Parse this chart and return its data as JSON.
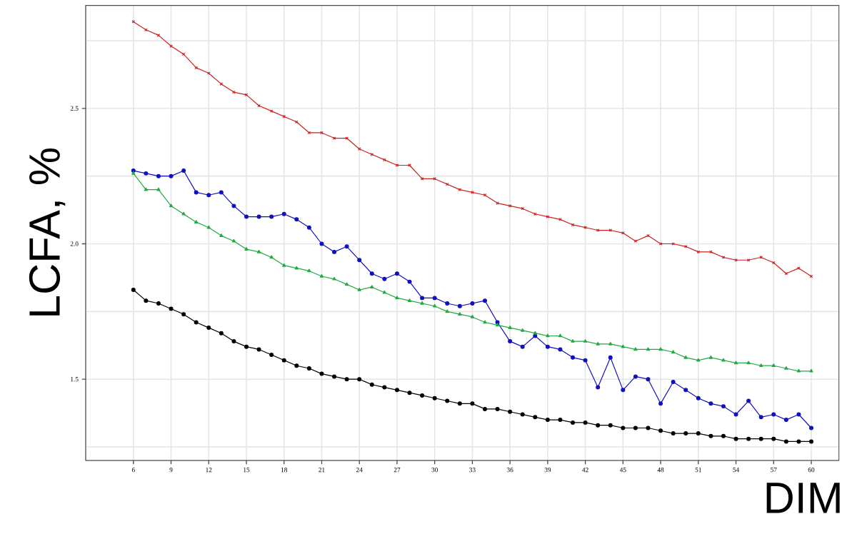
{
  "chart_data": {
    "type": "line",
    "xlabel": "DIM",
    "ylabel": "LCFA, %",
    "x": [
      6,
      7,
      8,
      9,
      10,
      11,
      12,
      13,
      14,
      15,
      16,
      17,
      18,
      19,
      20,
      21,
      22,
      23,
      24,
      25,
      26,
      27,
      28,
      29,
      30,
      31,
      32,
      33,
      34,
      35,
      36,
      37,
      38,
      39,
      40,
      41,
      42,
      43,
      44,
      45,
      46,
      47,
      48,
      49,
      50,
      51,
      52,
      53,
      54,
      55,
      56,
      57,
      58,
      59,
      60
    ],
    "series": [
      {
        "color": "#cc2222",
        "marker": "cross",
        "values": [
          2.82,
          2.79,
          2.77,
          2.73,
          2.7,
          2.65,
          2.63,
          2.59,
          2.56,
          2.55,
          2.51,
          2.49,
          2.47,
          2.45,
          2.41,
          2.41,
          2.39,
          2.39,
          2.35,
          2.33,
          2.31,
          2.29,
          2.29,
          2.24,
          2.24,
          2.22,
          2.2,
          2.19,
          2.18,
          2.15,
          2.14,
          2.13,
          2.11,
          2.1,
          2.09,
          2.07,
          2.06,
          2.05,
          2.05,
          2.04,
          2.01,
          2.03,
          2.0,
          2.0,
          1.99,
          1.97,
          1.97,
          1.95,
          1.94,
          1.94,
          1.95,
          1.93,
          1.89,
          1.91,
          1.88
        ]
      },
      {
        "color": "#1010c0",
        "marker": "circle",
        "values": [
          2.27,
          2.26,
          2.25,
          2.25,
          2.27,
          2.19,
          2.18,
          2.19,
          2.14,
          2.1,
          2.1,
          2.1,
          2.11,
          2.09,
          2.06,
          2.0,
          1.97,
          1.99,
          1.94,
          1.89,
          1.87,
          1.89,
          1.86,
          1.8,
          1.8,
          1.78,
          1.77,
          1.78,
          1.79,
          1.71,
          1.64,
          1.62,
          1.66,
          1.62,
          1.61,
          1.58,
          1.57,
          1.47,
          1.58,
          1.46,
          1.51,
          1.5,
          1.41,
          1.49,
          1.46,
          1.43,
          1.41,
          1.4,
          1.37,
          1.42,
          1.36,
          1.37,
          1.35,
          1.37,
          1.32
        ]
      },
      {
        "color": "#22aa44",
        "marker": "triangle",
        "values": [
          2.26,
          2.2,
          2.2,
          2.14,
          2.11,
          2.08,
          2.06,
          2.03,
          2.01,
          1.98,
          1.97,
          1.95,
          1.92,
          1.91,
          1.9,
          1.88,
          1.87,
          1.85,
          1.83,
          1.84,
          1.82,
          1.8,
          1.79,
          1.78,
          1.77,
          1.75,
          1.74,
          1.73,
          1.71,
          1.7,
          1.69,
          1.68,
          1.67,
          1.66,
          1.66,
          1.64,
          1.64,
          1.63,
          1.63,
          1.62,
          1.61,
          1.61,
          1.61,
          1.6,
          1.58,
          1.57,
          1.58,
          1.57,
          1.56,
          1.56,
          1.55,
          1.55,
          1.54,
          1.53,
          1.53
        ]
      },
      {
        "color": "#000000",
        "marker": "circle",
        "values": [
          1.83,
          1.79,
          1.78,
          1.76,
          1.74,
          1.71,
          1.69,
          1.67,
          1.64,
          1.62,
          1.61,
          1.59,
          1.57,
          1.55,
          1.54,
          1.52,
          1.51,
          1.5,
          1.5,
          1.48,
          1.47,
          1.46,
          1.45,
          1.44,
          1.43,
          1.42,
          1.41,
          1.41,
          1.39,
          1.39,
          1.38,
          1.37,
          1.36,
          1.35,
          1.35,
          1.34,
          1.34,
          1.33,
          1.33,
          1.32,
          1.32,
          1.32,
          1.31,
          1.3,
          1.3,
          1.3,
          1.29,
          1.29,
          1.28,
          1.28,
          1.28,
          1.28,
          1.27,
          1.27,
          1.27
        ]
      }
    ],
    "xlim": [
      2.2,
      62.2
    ],
    "ylim": [
      1.2,
      2.88
    ],
    "xticks": [
      6,
      9,
      12,
      15,
      18,
      21,
      24,
      27,
      30,
      33,
      36,
      39,
      42,
      45,
      48,
      51,
      54,
      57,
      60
    ],
    "yticks": [
      {
        "value": 1.25,
        "label": null
      },
      {
        "value": 1.5,
        "label": "1.5"
      },
      {
        "value": 1.75,
        "label": null
      },
      {
        "value": 2.0,
        "label": "2.0"
      },
      {
        "value": 2.25,
        "label": null
      },
      {
        "value": 2.5,
        "label": "2.5"
      },
      {
        "value": 2.75,
        "label": null
      }
    ],
    "grid": true,
    "line_style": "solid"
  }
}
